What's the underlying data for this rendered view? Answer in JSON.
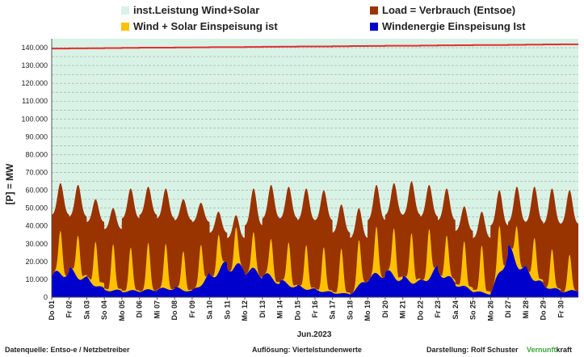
{
  "legend": [
    {
      "label": "inst.Leistung Wind+Solar",
      "color": "#d9f2e6"
    },
    {
      "label": "Load =  Verbrauch (Entsoe)",
      "color": "#993300"
    },
    {
      "label": "Wind + Solar Einspeisung ist",
      "color": "#ffc000"
    },
    {
      "label": "Windenergie Einspeisung Ist",
      "color": "#0000cc"
    }
  ],
  "chart_data": {
    "type": "area",
    "ylabel": "[P] = MW",
    "xlabel": "Jun.2023",
    "ylim": [
      0,
      145000
    ],
    "yticks": [
      "0",
      "10.000",
      "20.000",
      "30.000",
      "40.000",
      "50.000",
      "60.000",
      "70.000",
      "80.000",
      "90.000",
      "100.000",
      "110.000",
      "120.000",
      "130.000",
      "140.000"
    ],
    "ytick_values": [
      0,
      10000,
      20000,
      30000,
      40000,
      50000,
      60000,
      70000,
      80000,
      90000,
      100000,
      110000,
      120000,
      130000,
      140000
    ],
    "categories": [
      "Do 01",
      "Fr 02",
      "Sa 03",
      "So 04",
      "Mo 05",
      "Di 06",
      "Mi 07",
      "Do 08",
      "Fr 09",
      "Sa 10",
      "So 11",
      "Mo 12",
      "Di 13",
      "Mi 14",
      "Do 15",
      "Fr 16",
      "Sa 17",
      "So 18",
      "Mo 19",
      "Di 20",
      "Mi 21",
      "Do 22",
      "Fr 23",
      "Sa 24",
      "So 25",
      "Mo 26",
      "Di 27",
      "Mi 28",
      "Do 29",
      "Fr 30"
    ],
    "grid": true,
    "series": [
      {
        "name": "inst.Leistung Wind+Solar",
        "color": "#d9f2e6",
        "line_color": "#e03030",
        "values": [
          139500,
          139600,
          139700,
          139800,
          139900,
          140000,
          140000,
          140100,
          140200,
          140300,
          140300,
          140400,
          140500,
          140600,
          140700,
          140700,
          140800,
          140900,
          141000,
          141100,
          141100,
          141200,
          141300,
          141400,
          141500,
          141500,
          141600,
          141700,
          141800,
          141900
        ]
      },
      {
        "name": "Load =  Verbrauch (Entsoe)",
        "color": "#993300",
        "day_min": [
          46000,
          45000,
          42000,
          38000,
          44000,
          46000,
          44000,
          43000,
          42000,
          36000,
          33000,
          40000,
          44000,
          44000,
          43000,
          43000,
          36000,
          33000,
          43000,
          46000,
          46000,
          45000,
          43000,
          37000,
          33000,
          40000,
          42000,
          42000,
          41000,
          41000
        ],
        "values": [
          64000,
          63000,
          55000,
          50000,
          61000,
          62000,
          61000,
          55000,
          53000,
          48000,
          46000,
          61000,
          63000,
          62000,
          61000,
          60000,
          52000,
          50000,
          63000,
          64000,
          65000,
          63000,
          61000,
          51000,
          48000,
          60000,
          62000,
          62000,
          61000,
          60000
        ]
      },
      {
        "name": "Wind + Solar Einspeisung ist",
        "color": "#ffc000",
        "day_min": [
          12000,
          14000,
          12000,
          6000,
          5000,
          4000,
          5000,
          5000,
          4000,
          9000,
          14000,
          12000,
          10000,
          8000,
          6000,
          5000,
          4000,
          2000,
          10000,
          14000,
          12000,
          10000,
          12000,
          9000,
          6000,
          2000,
          8000,
          12000,
          6000,
          3000
        ],
        "values": [
          38000,
          41000,
          37000,
          31000,
          28000,
          30000,
          30000,
          28000,
          27000,
          35000,
          42000,
          38000,
          36000,
          34000,
          32000,
          30000,
          28000,
          27000,
          38000,
          43000,
          40000,
          38000,
          41000,
          34000,
          30000,
          28000,
          52000,
          42000,
          30000,
          24000
        ]
      },
      {
        "name": "Windenergie Einspeisung Ist",
        "color": "#0000cc",
        "values": [
          14000,
          17000,
          12000,
          5000,
          4000,
          4000,
          5000,
          6000,
          4000,
          14000,
          21000,
          18000,
          15000,
          10000,
          7000,
          5000,
          3000,
          2000,
          12000,
          16000,
          12000,
          10000,
          18000,
          9000,
          4000,
          2000,
          30000,
          18000,
          8000,
          4000
        ]
      }
    ]
  },
  "footer": {
    "source": "Datenquelle:  Entso-e  / Netzbetreiber",
    "resolution": "Auflösung: Viertelstundenwerte",
    "author": "Darstellung:  Rolf Schuster",
    "brand_prefix": "Vernunft",
    "brand_suffix": "kraft"
  }
}
